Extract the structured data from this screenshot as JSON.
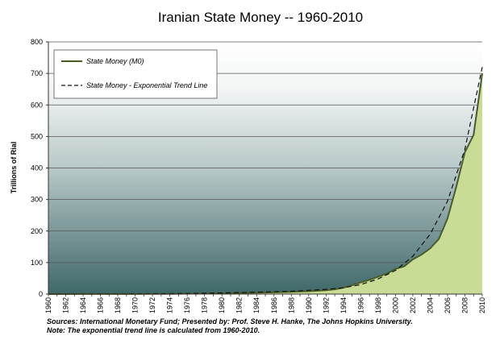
{
  "chart_data": {
    "type": "area",
    "title": "Iranian State Money -- 1960-2010",
    "xlabel": "",
    "ylabel": "Trillions of Rial",
    "xlim": [
      1960,
      2010
    ],
    "ylim": [
      0,
      800
    ],
    "yticks": [
      0,
      100,
      200,
      300,
      400,
      500,
      600,
      700,
      800
    ],
    "xticks": [
      "1960",
      "1962",
      "1964",
      "1966",
      "1968",
      "1970",
      "1972",
      "1974",
      "1976",
      "1978",
      "1980",
      "1982",
      "1984",
      "1986",
      "1988",
      "1990",
      "1992",
      "1994",
      "1996",
      "1998",
      "2000",
      "2002",
      "2004",
      "2006",
      "2008",
      "2010"
    ],
    "grid": true,
    "legend_position": "top-left",
    "series": [
      {
        "name": "State Money (M0)",
        "style": "solid-area",
        "color": "#4a5e23",
        "fill": "#c8dc96",
        "x": [
          1960,
          1962,
          1964,
          1966,
          1968,
          1970,
          1972,
          1974,
          1976,
          1978,
          1980,
          1982,
          1984,
          1986,
          1988,
          1990,
          1992,
          1993,
          1994,
          1995,
          1996,
          1997,
          1998,
          1999,
          2000,
          2001,
          2002,
          2003,
          2004,
          2005,
          2006,
          2007,
          2008,
          2009,
          2010
        ],
        "values": [
          0.1,
          0.1,
          0.2,
          0.2,
          0.3,
          0.4,
          0.5,
          0.8,
          1.2,
          1.8,
          2.5,
          3.5,
          4.5,
          5.5,
          7,
          9,
          12,
          15,
          20,
          28,
          37,
          45,
          55,
          65,
          80,
          88,
          110,
          125,
          145,
          175,
          240,
          340,
          450,
          505,
          700
        ]
      },
      {
        "name": "State Money - Exponential Trend Line",
        "style": "dashed-line",
        "color": "#111111",
        "x": [
          1960,
          1964,
          1968,
          1972,
          1976,
          1980,
          1984,
          1988,
          1990,
          1992,
          1994,
          1996,
          1998,
          2000,
          2002,
          2004,
          2006,
          2008,
          2010
        ],
        "values": [
          0.1,
          0.2,
          0.4,
          0.9,
          1.8,
          3.5,
          6,
          9,
          12,
          15,
          20,
          30,
          48,
          75,
          120,
          190,
          295,
          460,
          720
        ]
      }
    ]
  },
  "notes": [
    "Sources: International Monetary Fund; Presented by: Prof. Steve H. Hanke, The Johns Hopkins University.",
    "Note: The exponential trend line is calculated from 1960-2010."
  ],
  "colors": {
    "plot_gradient_top": "#ffffff",
    "plot_gradient_bottom": "#3f6869",
    "gridline": "#555555"
  }
}
